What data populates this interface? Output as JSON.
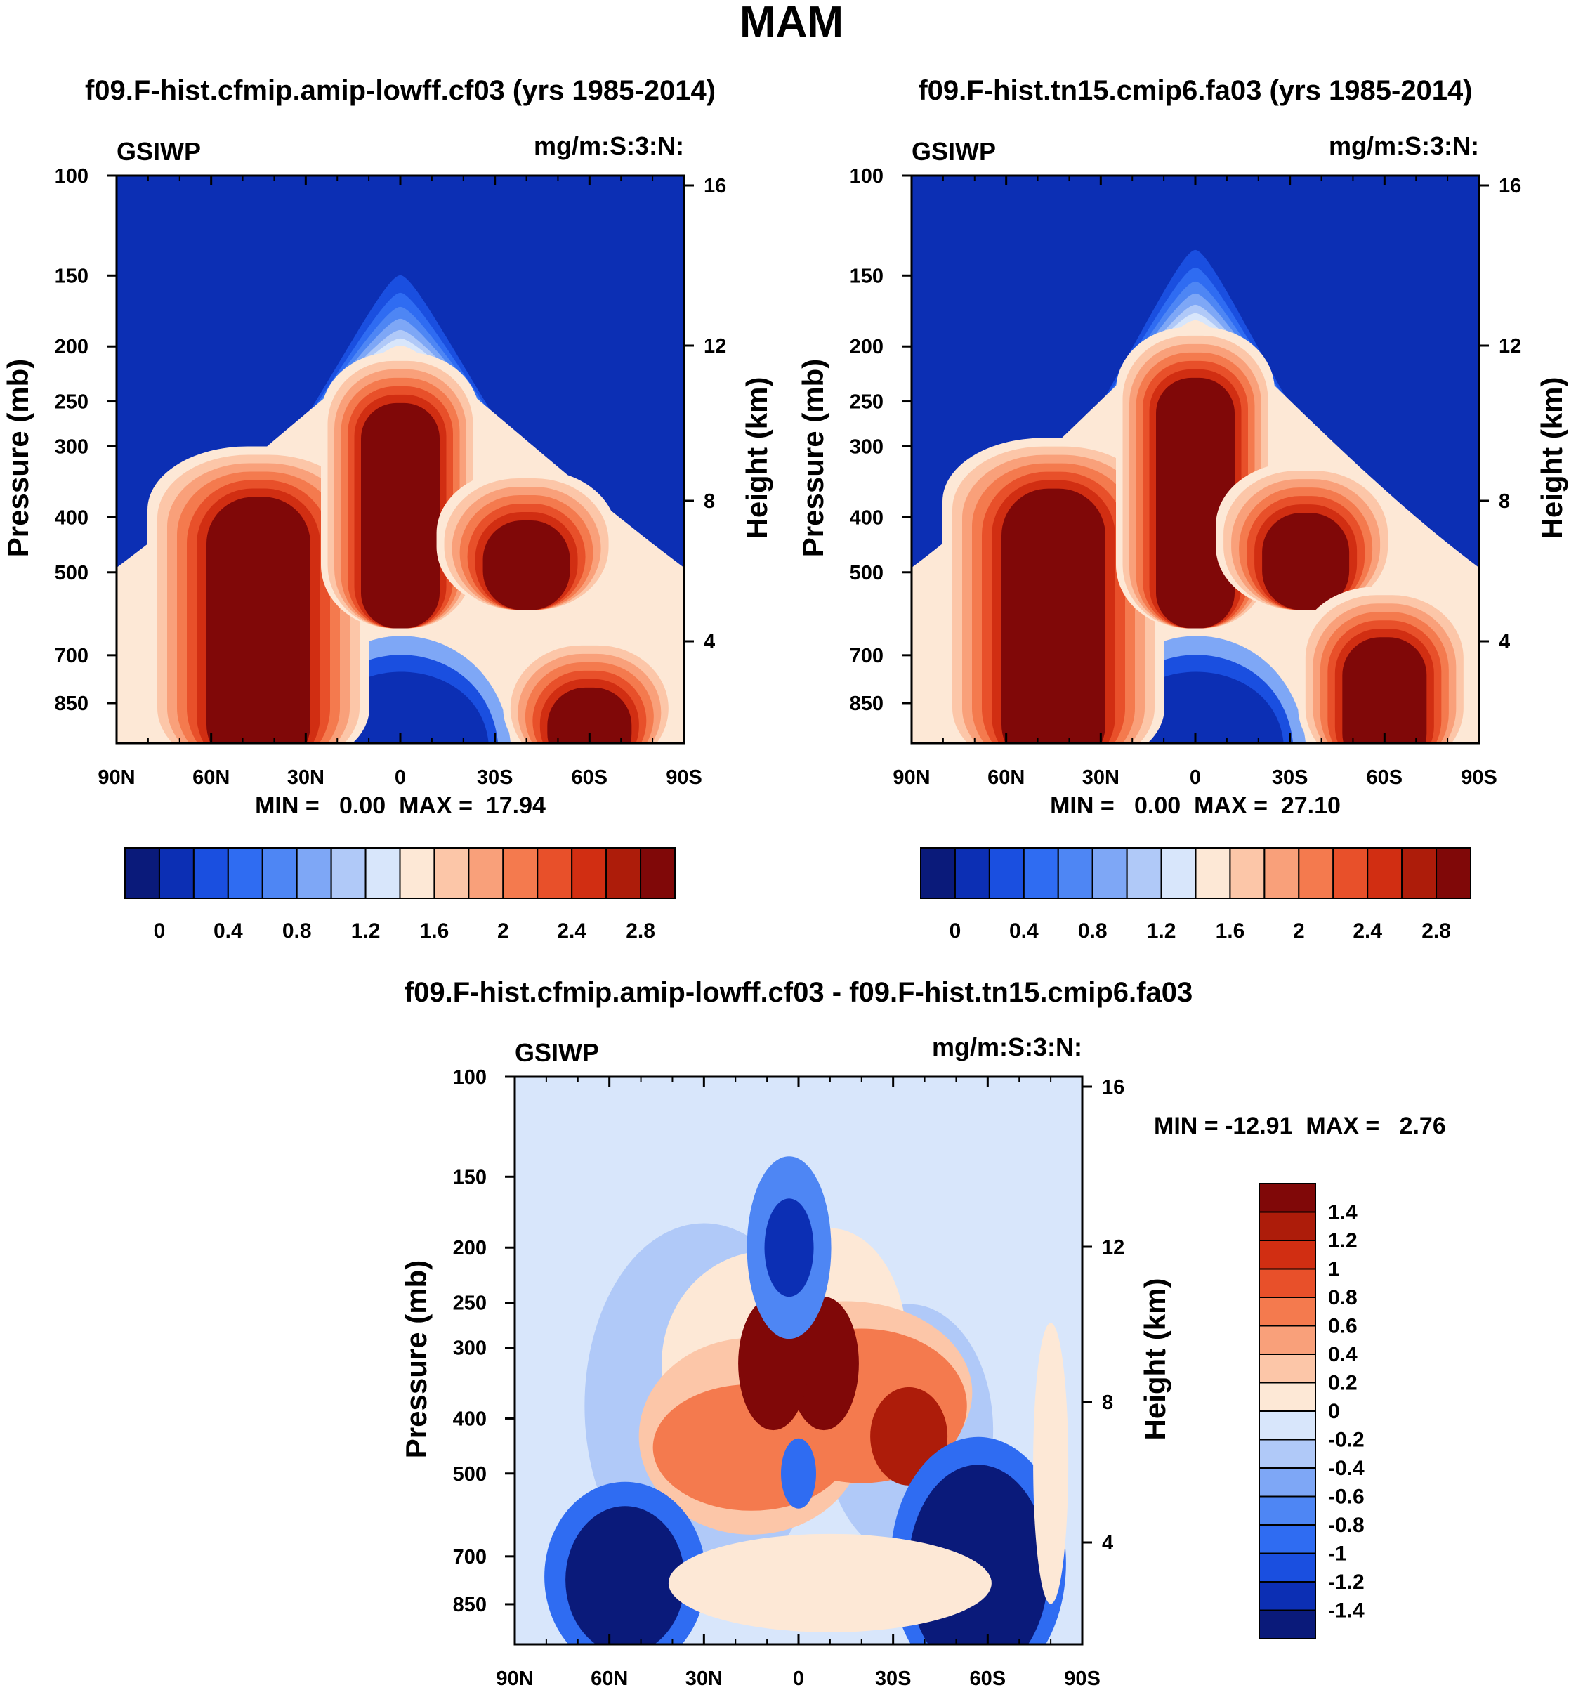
{
  "page": {
    "title": "MAM"
  },
  "colors": {
    "level_colors": [
      "#0a1a7a",
      "#0c2fb4",
      "#1a4fe0",
      "#2f6cf2",
      "#4e86f4",
      "#7ea7f6",
      "#b0c9f8",
      "#d8e6fb",
      "#fde8d6",
      "#fcc6a8",
      "#f9a07a",
      "#f47a4e",
      "#e8502a",
      "#d12e12",
      "#ad1c0a",
      "#800808"
    ],
    "diff_colors": [
      "#0a1a7a",
      "#0c2fb4",
      "#1a4fe0",
      "#2f6cf2",
      "#4e86f4",
      "#7ea7f6",
      "#b0c9f8",
      "#d8e6fb",
      "#fde8d6",
      "#fcc6a8",
      "#f9a07a",
      "#f47a4e",
      "#e8502a",
      "#d12e12",
      "#ad1c0a",
      "#800808"
    ]
  },
  "chart_data": [
    {
      "type": "heatmap",
      "id": "p1",
      "title": "f09.F-hist.cfmip.amip-lowff.cf03 (yrs 1985-2014)",
      "left_label": "GSIWP",
      "right_label": "mg/m:S:3:N:",
      "ylabel": "Pressure (mb)",
      "ylabel_right": "Height (km)",
      "x_ticks": [
        "90N",
        "60N",
        "30N",
        "0",
        "30S",
        "60S",
        "90S"
      ],
      "x_values": [
        90,
        60,
        30,
        0,
        -30,
        -60,
        -90
      ],
      "y_ticks": [
        100,
        150,
        200,
        250,
        300,
        400,
        500,
        700,
        850
      ],
      "y_range": [
        100,
        1000
      ],
      "height_ticks": [
        16,
        12,
        8,
        4
      ],
      "stats": "MIN =   0.00  MAX =  17.94",
      "colorbar_labels": [
        "0",
        "0.4",
        "0.8",
        "1.2",
        "1.6",
        "2",
        "2.4",
        "2.8"
      ],
      "colorbar_levels": [
        0,
        0.2,
        0.4,
        0.6,
        0.8,
        1,
        1.2,
        1.4,
        1.6,
        1.8,
        2,
        2.2,
        2.4,
        2.6,
        2.8
      ],
      "features": [
        {
          "kind": "tropical_tower",
          "lat": 0,
          "top_mb": 205,
          "max": 17.9
        },
        {
          "kind": "nh_midlat",
          "lat": 45,
          "top_mb": 300,
          "max": 6
        },
        {
          "kind": "sh_midlat",
          "lat": -40,
          "top_mb": 330,
          "max": 5
        },
        {
          "kind": "sh_lowlevel",
          "lat": -60,
          "top_mb": 650,
          "max": 5
        }
      ]
    },
    {
      "type": "heatmap",
      "id": "p2",
      "title": "f09.F-hist.tn15.cmip6.fa03 (yrs 1985-2014)",
      "left_label": "GSIWP",
      "right_label": "mg/m:S:3:N:",
      "ylabel": "Pressure (mb)",
      "ylabel_right": "Height (km)",
      "x_ticks": [
        "90N",
        "60N",
        "30N",
        "0",
        "30S",
        "60S",
        "90S"
      ],
      "x_values": [
        90,
        60,
        30,
        0,
        -30,
        -60,
        -90
      ],
      "y_ticks": [
        100,
        150,
        200,
        250,
        300,
        400,
        500,
        700,
        850
      ],
      "y_range": [
        100,
        1000
      ],
      "height_ticks": [
        16,
        12,
        8,
        4
      ],
      "stats": "MIN =   0.00  MAX =  27.10",
      "colorbar_labels": [
        "0",
        "0.4",
        "0.8",
        "1.2",
        "1.6",
        "2",
        "2.4",
        "2.8"
      ],
      "colorbar_levels": [
        0,
        0.2,
        0.4,
        0.6,
        0.8,
        1,
        1.2,
        1.4,
        1.6,
        1.8,
        2,
        2.2,
        2.4,
        2.6,
        2.8
      ],
      "features": [
        {
          "kind": "tropical_tower",
          "lat": 0,
          "top_mb": 185,
          "max": 27.1
        },
        {
          "kind": "nh_midlat",
          "lat": 45,
          "top_mb": 290,
          "max": 7
        },
        {
          "kind": "sh_midlat",
          "lat": -35,
          "top_mb": 320,
          "max": 3
        },
        {
          "kind": "sh_lowlevel",
          "lat": -60,
          "top_mb": 530,
          "max": 6
        }
      ]
    },
    {
      "type": "heatmap",
      "id": "p3",
      "title": "f09.F-hist.cfmip.amip-lowff.cf03 - f09.F-hist.tn15.cmip6.fa03",
      "left_label": "GSIWP",
      "right_label": "mg/m:S:3:N:",
      "ylabel": "Pressure (mb)",
      "ylabel_right": "Height (km)",
      "x_ticks": [
        "90N",
        "60N",
        "30N",
        "0",
        "30S",
        "60S",
        "90S"
      ],
      "x_values": [
        90,
        60,
        30,
        0,
        -30,
        -60,
        -90
      ],
      "y_ticks": [
        100,
        150,
        200,
        250,
        300,
        400,
        500,
        700,
        850
      ],
      "y_range": [
        100,
        1000
      ],
      "height_ticks": [
        16,
        12,
        8,
        4
      ],
      "stats": "MIN = -12.91  MAX =   2.76",
      "colorbar_labels": [
        "1.4",
        "1.2",
        "1",
        "0.8",
        "0.6",
        "0.4",
        "0.2",
        "0",
        "-0.2",
        "-0.4",
        "-0.6",
        "-0.8",
        "-1",
        "-1.2",
        "-1.4"
      ],
      "colorbar_levels": [
        -1.4,
        -1.2,
        -1,
        -0.8,
        -0.6,
        -0.4,
        -0.2,
        0,
        0.2,
        0.4,
        0.6,
        0.8,
        1,
        1.2,
        1.4
      ]
    }
  ]
}
